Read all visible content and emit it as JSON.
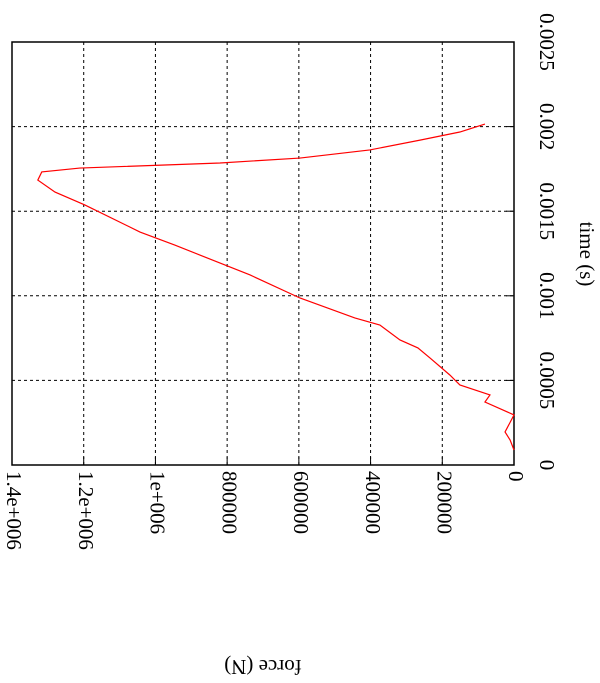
{
  "chart_data": {
    "type": "line",
    "xlabel": "time (s)",
    "ylabel": "force (N)",
    "x": [
      8.87e-05,
      0.000148,
      0.000195,
      0.000296,
      0.000372,
      0.000414,
      0.000473,
      0.000532,
      0.000632,
      0.000692,
      0.000739,
      0.000827,
      0.000869,
      0.000987,
      0.001123,
      0.001241,
      0.0013,
      0.001377,
      0.001537,
      0.001613,
      0.001684,
      0.001732,
      0.001755,
      0.001785,
      0.001814,
      0.001862,
      0.00192,
      0.001968,
      0.002015
    ],
    "series": [
      {
        "name": "force",
        "color": "#ff0000",
        "values": [
          0,
          11000,
          25000,
          0,
          81000,
          67000,
          151000,
          179000,
          234000,
          268000,
          318000,
          374000,
          444000,
          597000,
          736000,
          876000,
          946000,
          1043000,
          1197000,
          1280000,
          1328000,
          1317000,
          1211000,
          820000,
          597000,
          402000,
          262000,
          151000,
          81000
        ]
      }
    ],
    "xlim": [
      0,
      0.0025
    ],
    "xticks": [
      0,
      0.0005,
      0.001,
      0.0015,
      0.002,
      0.0025
    ],
    "ylim": [
      0,
      1400000
    ],
    "yticks": [
      0,
      200000,
      400000,
      600000,
      800000,
      {
        "value": 1000000,
        "label": "1e+006"
      },
      {
        "value": 1200000,
        "label": "1.2e+006"
      },
      {
        "value": 1400000,
        "label": "1.4e+006"
      }
    ],
    "grid": true
  }
}
